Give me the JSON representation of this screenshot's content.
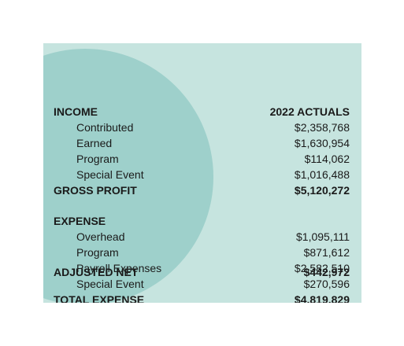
{
  "income": {
    "heading": "INCOME",
    "column_header": "2022 ACTUALS",
    "items": [
      {
        "label": "Contributed",
        "value": "$2,358,768"
      },
      {
        "label": "Earned",
        "value": "$1,630,954"
      },
      {
        "label": "Program",
        "value": "$114,062"
      },
      {
        "label": "Special Event",
        "value": "$1,016,488"
      }
    ],
    "total": {
      "label": "GROSS PROFIT",
      "value": "$5,120,272"
    }
  },
  "expense": {
    "heading": "EXPENSE",
    "items": [
      {
        "label": "Overhead",
        "value": "$1,095,111"
      },
      {
        "label": "Program",
        "value": "$871,612"
      },
      {
        "label": "Payroll Expenses",
        "value": "$2,582,510"
      },
      {
        "label": "Special Event",
        "value": "$270,596"
      }
    ],
    "total": {
      "label": "TOTAL EXPENSE",
      "value": "$4,819,829"
    }
  },
  "net": {
    "label": "ADJUSTED NET",
    "value": "$442,972"
  },
  "colors": {
    "panel_background": "#c6e4df",
    "circle": "#9ed0cb",
    "text": "#1a1a1a"
  }
}
